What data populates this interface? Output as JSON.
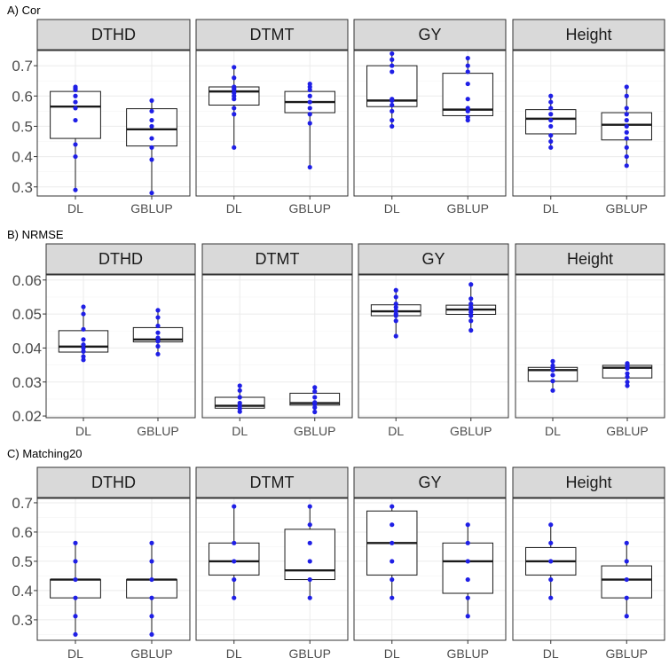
{
  "figure": {
    "colors": {
      "point": "#1f1fe6",
      "box_stroke": "#1a1a1a",
      "strip_fill": "#d9d9d9",
      "panel_border": "#333333",
      "grid": "#ebebeb"
    },
    "icons": {
      "point_marker": "dot"
    }
  },
  "chart_data": [
    {
      "type": "box",
      "title": "A) Cor",
      "categories": [
        "DL",
        "GBLUP"
      ],
      "y_ticks": [
        "0.3",
        "0.4",
        "0.5",
        "0.6",
        "0.7"
      ],
      "y_tick_values": [
        0.3,
        0.4,
        0.5,
        0.6,
        0.7
      ],
      "ylim": [
        0.27,
        0.75
      ],
      "panels": [
        {
          "facet": "DTHD",
          "boxes": [
            {
              "category": "DL",
              "q1": 0.46,
              "median": 0.565,
              "q3": 0.615,
              "whisker_low": 0.29,
              "whisker_high": 0.63,
              "points": [
                0.29,
                0.4,
                0.44,
                0.52,
                0.56,
                0.58,
                0.6,
                0.62,
                0.625,
                0.63
              ]
            },
            {
              "category": "GBLUP",
              "q1": 0.435,
              "median": 0.49,
              "q3": 0.558,
              "whisker_low": 0.28,
              "whisker_high": 0.585,
              "points": [
                0.28,
                0.39,
                0.43,
                0.46,
                0.5,
                0.52,
                0.55,
                0.585
              ]
            }
          ]
        },
        {
          "facet": "DTMT",
          "boxes": [
            {
              "category": "DL",
              "q1": 0.57,
              "median": 0.615,
              "q3": 0.63,
              "whisker_low": 0.43,
              "whisker_high": 0.695,
              "points": [
                0.43,
                0.54,
                0.56,
                0.59,
                0.6,
                0.61,
                0.62,
                0.625,
                0.63,
                0.66,
                0.695
              ]
            },
            {
              "category": "GBLUP",
              "q1": 0.545,
              "median": 0.58,
              "q3": 0.615,
              "whisker_low": 0.365,
              "whisker_high": 0.64,
              "points": [
                0.365,
                0.51,
                0.54,
                0.56,
                0.58,
                0.6,
                0.62,
                0.63,
                0.64
              ]
            }
          ]
        },
        {
          "facet": "GY",
          "boxes": [
            {
              "category": "DL",
              "q1": 0.565,
              "median": 0.585,
              "q3": 0.7,
              "whisker_low": 0.5,
              "whisker_high": 0.74,
              "points": [
                0.5,
                0.52,
                0.55,
                0.57,
                0.585,
                0.59,
                0.68,
                0.7,
                0.72,
                0.74
              ]
            },
            {
              "category": "GBLUP",
              "q1": 0.535,
              "median": 0.555,
              "q3": 0.675,
              "whisker_low": 0.52,
              "whisker_high": 0.725,
              "points": [
                0.52,
                0.53,
                0.55,
                0.56,
                0.59,
                0.64,
                0.68,
                0.7,
                0.725
              ]
            }
          ]
        },
        {
          "facet": "Height",
          "boxes": [
            {
              "category": "DL",
              "q1": 0.475,
              "median": 0.525,
              "q3": 0.555,
              "whisker_low": 0.43,
              "whisker_high": 0.6,
              "points": [
                0.43,
                0.45,
                0.47,
                0.5,
                0.52,
                0.54,
                0.56,
                0.58,
                0.6
              ]
            },
            {
              "category": "GBLUP",
              "q1": 0.455,
              "median": 0.505,
              "q3": 0.545,
              "whisker_low": 0.37,
              "whisker_high": 0.63,
              "points": [
                0.37,
                0.4,
                0.43,
                0.46,
                0.48,
                0.5,
                0.52,
                0.54,
                0.56,
                0.6,
                0.63
              ]
            }
          ]
        }
      ]
    },
    {
      "type": "box",
      "title": "B) NRMSE",
      "categories": [
        "DL",
        "GBLUP"
      ],
      "y_ticks": [
        "0.02",
        "0.03",
        "0.04",
        "0.05",
        "0.06"
      ],
      "y_tick_values": [
        0.02,
        0.03,
        0.04,
        0.05,
        0.06
      ],
      "ylim": [
        0.0195,
        0.0615
      ],
      "panels": [
        {
          "facet": "DTHD",
          "boxes": [
            {
              "category": "DL",
              "q1": 0.0388,
              "median": 0.0404,
              "q3": 0.0451,
              "whisker_low": 0.0365,
              "whisker_high": 0.0521,
              "points": [
                0.0365,
                0.0375,
                0.039,
                0.04,
                0.041,
                0.0425,
                0.0455,
                0.05,
                0.0521
              ]
            },
            {
              "category": "GBLUP",
              "q1": 0.0418,
              "median": 0.0425,
              "q3": 0.046,
              "whisker_low": 0.0382,
              "whisker_high": 0.0511,
              "points": [
                0.0382,
                0.0405,
                0.042,
                0.043,
                0.0445,
                0.0465,
                0.049,
                0.0511
              ]
            }
          ]
        },
        {
          "facet": "DTMT",
          "boxes": [
            {
              "category": "DL",
              "q1": 0.0223,
              "median": 0.023,
              "q3": 0.0255,
              "whisker_low": 0.0213,
              "whisker_high": 0.0289,
              "points": [
                0.0213,
                0.0222,
                0.023,
                0.0238,
                0.0255,
                0.0275,
                0.0289
              ]
            },
            {
              "category": "GBLUP",
              "q1": 0.0232,
              "median": 0.0238,
              "q3": 0.0267,
              "whisker_low": 0.0212,
              "whisker_high": 0.0284,
              "points": [
                0.0212,
                0.0225,
                0.0235,
                0.024,
                0.0255,
                0.0272,
                0.0284
              ]
            }
          ]
        },
        {
          "facet": "GY",
          "boxes": [
            {
              "category": "DL",
              "q1": 0.0495,
              "median": 0.0508,
              "q3": 0.0527,
              "whisker_low": 0.0435,
              "whisker_high": 0.057,
              "points": [
                0.0435,
                0.048,
                0.0495,
                0.05,
                0.051,
                0.052,
                0.053,
                0.055,
                0.057
              ]
            },
            {
              "category": "GBLUP",
              "q1": 0.0499,
              "median": 0.0513,
              "q3": 0.0526,
              "whisker_low": 0.0452,
              "whisker_high": 0.0587,
              "points": [
                0.0452,
                0.048,
                0.0495,
                0.0505,
                0.0513,
                0.052,
                0.053,
                0.0545,
                0.0587
              ]
            }
          ]
        },
        {
          "facet": "Height",
          "boxes": [
            {
              "category": "DL",
              "q1": 0.0302,
              "median": 0.0335,
              "q3": 0.0343,
              "whisker_low": 0.0275,
              "whisker_high": 0.0361,
              "points": [
                0.0275,
                0.0303,
                0.032,
                0.0335,
                0.034,
                0.0348,
                0.0361
              ]
            },
            {
              "category": "GBLUP",
              "q1": 0.0312,
              "median": 0.0342,
              "q3": 0.0349,
              "whisker_low": 0.0289,
              "whisker_high": 0.0355,
              "points": [
                0.0289,
                0.03,
                0.0315,
                0.0325,
                0.034,
                0.0345,
                0.035,
                0.0355
              ]
            }
          ]
        }
      ]
    },
    {
      "type": "box",
      "title": "C) Matching20",
      "categories": [
        "DL",
        "GBLUP"
      ],
      "y_ticks": [
        "0.3",
        "0.4",
        "0.5",
        "0.6",
        "0.7"
      ],
      "y_tick_values": [
        0.3,
        0.4,
        0.5,
        0.6,
        0.7
      ],
      "ylim": [
        0.23,
        0.715
      ],
      "panels": [
        {
          "facet": "DTHD",
          "boxes": [
            {
              "category": "DL",
              "q1": 0.375,
              "median": 0.4375,
              "q3": 0.4375,
              "whisker_low": 0.25,
              "whisker_high": 0.5625,
              "points": [
                0.25,
                0.3125,
                0.375,
                0.4375,
                0.5,
                0.5625
              ]
            },
            {
              "category": "GBLUP",
              "q1": 0.375,
              "median": 0.4375,
              "q3": 0.4375,
              "whisker_low": 0.25,
              "whisker_high": 0.5625,
              "points": [
                0.25,
                0.3125,
                0.375,
                0.4375,
                0.5,
                0.5625
              ]
            }
          ]
        },
        {
          "facet": "DTMT",
          "boxes": [
            {
              "category": "DL",
              "q1": 0.4531,
              "median": 0.5,
              "q3": 0.5625,
              "whisker_low": 0.375,
              "whisker_high": 0.6875,
              "points": [
                0.375,
                0.4375,
                0.5,
                0.5625,
                0.6875
              ]
            },
            {
              "category": "GBLUP",
              "q1": 0.4375,
              "median": 0.4688,
              "q3": 0.6094,
              "whisker_low": 0.375,
              "whisker_high": 0.6875,
              "points": [
                0.375,
                0.4375,
                0.5,
                0.5625,
                0.625,
                0.6875
              ]
            }
          ]
        },
        {
          "facet": "GY",
          "boxes": [
            {
              "category": "DL",
              "q1": 0.4531,
              "median": 0.5625,
              "q3": 0.6719,
              "whisker_low": 0.375,
              "whisker_high": 0.6875,
              "points": [
                0.375,
                0.4375,
                0.5,
                0.5625,
                0.625,
                0.6875
              ]
            },
            {
              "category": "GBLUP",
              "q1": 0.3906,
              "median": 0.5,
              "q3": 0.5625,
              "whisker_low": 0.3125,
              "whisker_high": 0.625,
              "points": [
                0.3125,
                0.375,
                0.4375,
                0.5,
                0.5625,
                0.625
              ]
            }
          ]
        },
        {
          "facet": "Height",
          "boxes": [
            {
              "category": "DL",
              "q1": 0.4531,
              "median": 0.5,
              "q3": 0.5469,
              "whisker_low": 0.375,
              "whisker_high": 0.625,
              "points": [
                0.375,
                0.4375,
                0.5,
                0.5625,
                0.625
              ]
            },
            {
              "category": "GBLUP",
              "q1": 0.375,
              "median": 0.4375,
              "q3": 0.4844,
              "whisker_low": 0.3125,
              "whisker_high": 0.5625,
              "points": [
                0.3125,
                0.375,
                0.4375,
                0.5,
                0.5625
              ]
            }
          ]
        }
      ]
    }
  ]
}
